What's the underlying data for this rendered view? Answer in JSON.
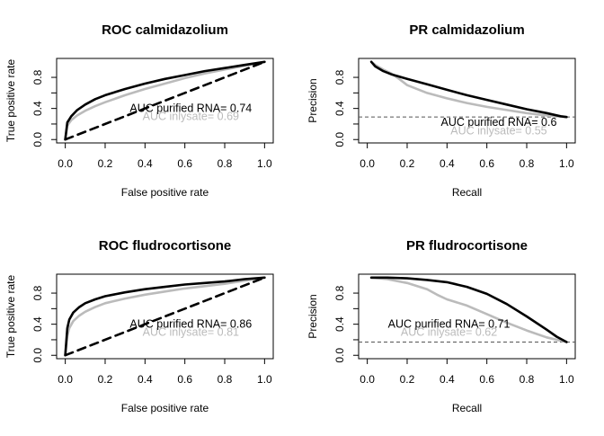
{
  "chart_data": [
    {
      "type": "line",
      "title": "ROC calmidazolium",
      "xlabel": "False positive rate",
      "ylabel": "True positive rate",
      "xlim": [
        0,
        1
      ],
      "ylim": [
        0,
        1
      ],
      "xticks": [
        "0.0",
        "0.2",
        "0.4",
        "0.6",
        "0.8",
        "1.0"
      ],
      "yticks": [
        "0.0",
        "0.4",
        "0.8"
      ],
      "series": [
        {
          "color": "#000000",
          "style": "solid",
          "x": [
            0,
            0.01,
            0.03,
            0.06,
            0.1,
            0.15,
            0.2,
            0.3,
            0.4,
            0.5,
            0.6,
            0.7,
            0.8,
            0.9,
            1.0
          ],
          "y": [
            0,
            0.22,
            0.3,
            0.38,
            0.45,
            0.52,
            0.57,
            0.65,
            0.72,
            0.78,
            0.83,
            0.88,
            0.92,
            0.96,
            1.0
          ]
        },
        {
          "color": "#bbbbbb",
          "style": "solid",
          "x": [
            0,
            0.01,
            0.03,
            0.06,
            0.1,
            0.15,
            0.2,
            0.3,
            0.4,
            0.5,
            0.6,
            0.7,
            0.8,
            0.9,
            1.0
          ],
          "y": [
            0,
            0.18,
            0.25,
            0.31,
            0.37,
            0.43,
            0.48,
            0.57,
            0.65,
            0.72,
            0.79,
            0.85,
            0.9,
            0.95,
            1.0
          ]
        },
        {
          "color": "#000000",
          "style": "dashed",
          "x": [
            0,
            1
          ],
          "y": [
            0,
            1
          ]
        }
      ],
      "annotations": [
        {
          "text": "AUC purified RNA= 0.74",
          "x": 0.63,
          "y": 0.4,
          "color": "#000000"
        },
        {
          "text": "AUC inlysate= 0.69",
          "x": 0.63,
          "y": 0.3,
          "color": "#bbbbbb"
        }
      ]
    },
    {
      "type": "line",
      "title": "PR calmidazolium",
      "xlabel": "Recall",
      "ylabel": "Precision",
      "xlim": [
        0,
        1
      ],
      "ylim": [
        0,
        1
      ],
      "xticks": [
        "0.0",
        "0.2",
        "0.4",
        "0.6",
        "0.8",
        "1.0"
      ],
      "yticks": [
        "0.0",
        "0.4",
        "0.8"
      ],
      "baseline": 0.29,
      "series": [
        {
          "color": "#000000",
          "style": "solid",
          "x": [
            0.02,
            0.04,
            0.08,
            0.12,
            0.2,
            0.3,
            0.4,
            0.5,
            0.6,
            0.7,
            0.8,
            0.9,
            0.97,
            1.0
          ],
          "y": [
            1.0,
            0.94,
            0.88,
            0.84,
            0.78,
            0.71,
            0.64,
            0.57,
            0.51,
            0.45,
            0.39,
            0.34,
            0.3,
            0.29
          ]
        },
        {
          "color": "#bbbbbb",
          "style": "solid",
          "x": [
            0.02,
            0.04,
            0.08,
            0.12,
            0.16,
            0.2,
            0.3,
            0.4,
            0.5,
            0.6,
            0.7,
            0.8,
            0.9,
            1.0
          ],
          "y": [
            1.0,
            0.96,
            0.9,
            0.85,
            0.78,
            0.7,
            0.6,
            0.53,
            0.47,
            0.42,
            0.38,
            0.34,
            0.31,
            0.29
          ]
        }
      ],
      "annotations": [
        {
          "text": "AUC purified RNA= 0.6",
          "x": 0.66,
          "y": 0.22,
          "color": "#000000"
        },
        {
          "text": "AUC inlysate= 0.55",
          "x": 0.66,
          "y": 0.11,
          "color": "#bbbbbb"
        }
      ]
    },
    {
      "type": "line",
      "title": "ROC fludrocortisone",
      "xlabel": "False positive rate",
      "ylabel": "True positive rate",
      "xlim": [
        0,
        1
      ],
      "ylim": [
        0,
        1
      ],
      "xticks": [
        "0.0",
        "0.2",
        "0.4",
        "0.6",
        "0.8",
        "1.0"
      ],
      "yticks": [
        "0.0",
        "0.4",
        "0.8"
      ],
      "series": [
        {
          "color": "#000000",
          "style": "solid",
          "x": [
            0,
            0.01,
            0.02,
            0.04,
            0.07,
            0.1,
            0.15,
            0.2,
            0.3,
            0.4,
            0.5,
            0.6,
            0.7,
            0.8,
            0.9,
            1.0
          ],
          "y": [
            0,
            0.35,
            0.46,
            0.55,
            0.62,
            0.67,
            0.72,
            0.76,
            0.81,
            0.85,
            0.88,
            0.91,
            0.93,
            0.95,
            0.98,
            1.0
          ]
        },
        {
          "color": "#bbbbbb",
          "style": "solid",
          "x": [
            0,
            0.01,
            0.02,
            0.04,
            0.07,
            0.1,
            0.15,
            0.2,
            0.3,
            0.4,
            0.5,
            0.6,
            0.7,
            0.8,
            0.9,
            1.0
          ],
          "y": [
            0,
            0.25,
            0.35,
            0.44,
            0.51,
            0.56,
            0.62,
            0.67,
            0.73,
            0.78,
            0.82,
            0.86,
            0.89,
            0.92,
            0.96,
            1.0
          ]
        },
        {
          "color": "#000000",
          "style": "dashed",
          "x": [
            0,
            1
          ],
          "y": [
            0,
            1
          ]
        }
      ],
      "annotations": [
        {
          "text": "AUC purified RNA= 0.86",
          "x": 0.63,
          "y": 0.4,
          "color": "#000000"
        },
        {
          "text": "AUC inlysate= 0.81",
          "x": 0.63,
          "y": 0.3,
          "color": "#bbbbbb"
        }
      ]
    },
    {
      "type": "line",
      "title": "PR fludrocortisone",
      "xlabel": "Recall",
      "ylabel": "Precision",
      "xlim": [
        0,
        1
      ],
      "ylim": [
        0,
        1
      ],
      "xticks": [
        "0.0",
        "0.2",
        "0.4",
        "0.6",
        "0.8",
        "1.0"
      ],
      "yticks": [
        "0.0",
        "0.4",
        "0.8"
      ],
      "baseline": 0.17,
      "series": [
        {
          "color": "#000000",
          "style": "solid",
          "x": [
            0.02,
            0.1,
            0.2,
            0.3,
            0.4,
            0.5,
            0.6,
            0.7,
            0.8,
            0.9,
            0.95,
            1.0
          ],
          "y": [
            1.0,
            1.0,
            0.99,
            0.97,
            0.94,
            0.88,
            0.79,
            0.66,
            0.5,
            0.33,
            0.24,
            0.17
          ]
        },
        {
          "color": "#bbbbbb",
          "style": "solid",
          "x": [
            0.02,
            0.1,
            0.2,
            0.3,
            0.35,
            0.4,
            0.5,
            0.6,
            0.7,
            0.8,
            0.9,
            1.0
          ],
          "y": [
            1.0,
            0.98,
            0.93,
            0.85,
            0.78,
            0.72,
            0.64,
            0.53,
            0.42,
            0.32,
            0.23,
            0.17
          ]
        }
      ],
      "annotations": [
        {
          "text": "AUC purified RNA= 0.71",
          "x": 0.41,
          "y": 0.4,
          "color": "#000000"
        },
        {
          "text": "AUC inlysate= 0.62",
          "x": 0.41,
          "y": 0.3,
          "color": "#bbbbbb"
        }
      ]
    }
  ]
}
